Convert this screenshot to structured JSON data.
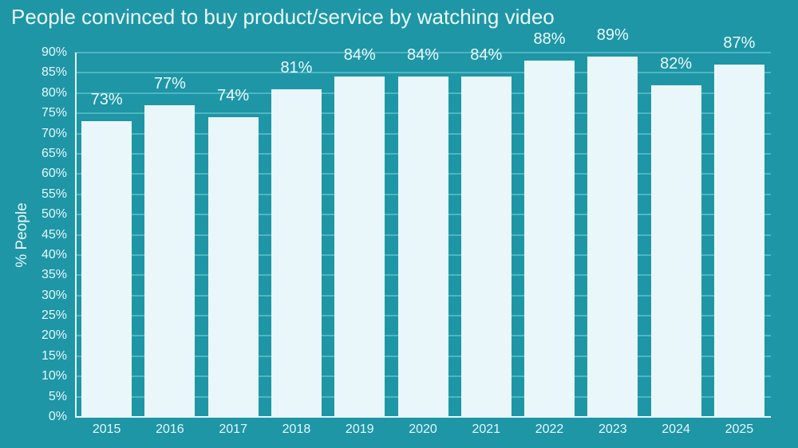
{
  "chart_data": {
    "type": "bar",
    "title": "People convinced to buy product/service by watching video",
    "xlabel": "",
    "ylabel": "% People",
    "ylim": [
      0,
      90
    ],
    "yticks": [
      "0%",
      "5%",
      "10%",
      "15%",
      "20%",
      "25%",
      "30%",
      "35%",
      "40%",
      "45%",
      "50%",
      "55%",
      "60%",
      "65%",
      "70%",
      "75%",
      "80%",
      "85%",
      "90%"
    ],
    "categories": [
      "2015",
      "2016",
      "2017",
      "2018",
      "2019",
      "2020",
      "2021",
      "2022",
      "2023",
      "2024",
      "2025"
    ],
    "values": [
      73,
      77,
      74,
      81,
      84,
      84,
      84,
      88,
      89,
      82,
      87
    ],
    "value_labels": [
      "73%",
      "77%",
      "74%",
      "81%",
      "84%",
      "84%",
      "84%",
      "88%",
      "89%",
      "82%",
      "87%"
    ],
    "grid": true,
    "legend": null,
    "colors": {
      "background": "#1e96a6",
      "bar": "#eaf7fa",
      "grid": "#4fb5c2",
      "text": "#e6f7f9"
    }
  }
}
